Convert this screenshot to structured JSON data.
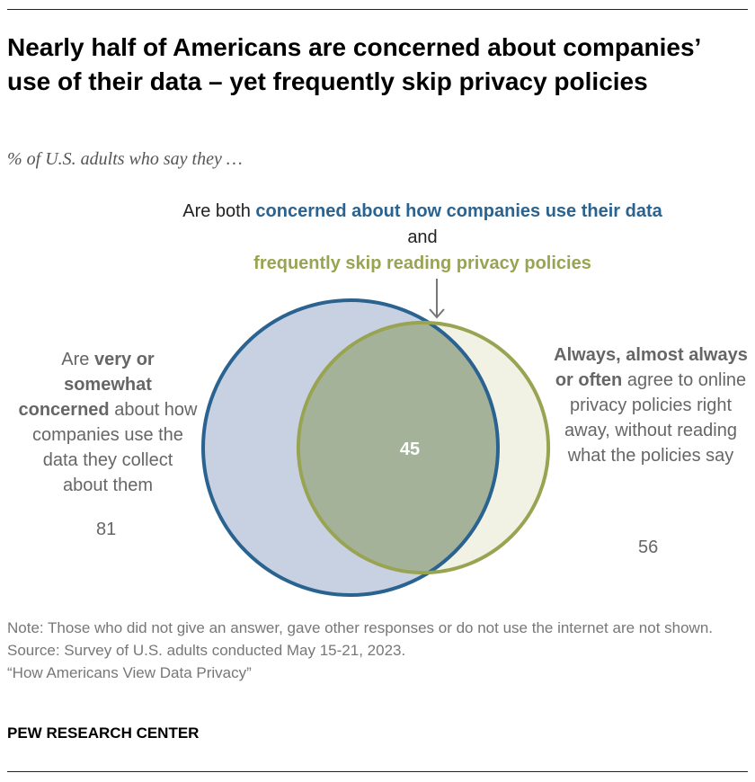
{
  "title": "Nearly half of Americans are concerned about companies’ use of their data – yet frequently skip privacy policies",
  "subtitle": "% of U.S. adults who say they …",
  "chart_data": {
    "type": "venn",
    "sets": [
      {
        "id": "concerned",
        "value": 81,
        "color": "#2a6390",
        "fill": "#c8d1e2",
        "label_parts": [
          "Are ",
          "very or somewhat concerned",
          " about how companies use the data they collect about them"
        ]
      },
      {
        "id": "skip",
        "value": 56,
        "color": "#99a452",
        "fill": "#f1f2e4",
        "label_parts": [
          "Always, almost always or often",
          " agree to online privacy policies right away, without reading what the policies say"
        ]
      }
    ],
    "intersection": {
      "value": 45,
      "fill": "#a5b29a",
      "label_parts": [
        "Are both ",
        "concerned about how companies use their data",
        " and ",
        "frequently skip reading privacy policies"
      ]
    }
  },
  "footer": {
    "note": "Note: Those who did not give an answer, gave other responses or do not use the internet are not shown.",
    "source": "Source: Survey of U.S. adults conducted May 15-21, 2023.",
    "report": "“How Americans View Data Privacy”"
  },
  "brand": "PEW RESEARCH CENTER"
}
